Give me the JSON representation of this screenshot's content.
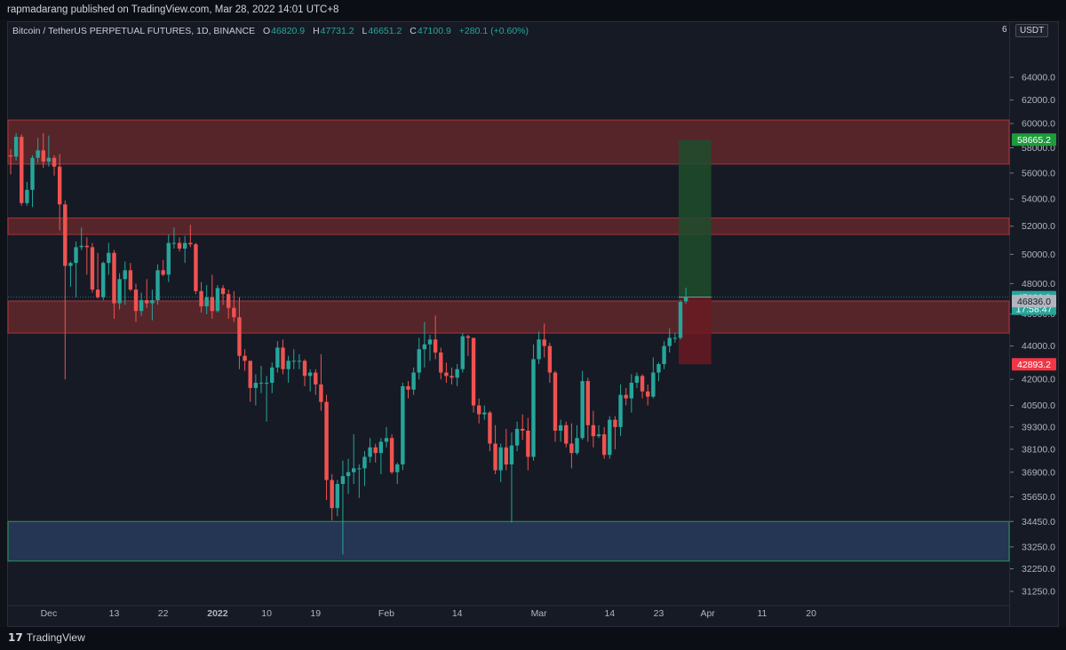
{
  "header": {
    "publisher_text": "rapmadarang published on TradingView.com, Mar 28, 2022 14:01 UTC+8"
  },
  "legend": {
    "symbol": "Bitcoin / TetherUS PERPETUAL FUTURES, 1D, BINANCE",
    "o_label": "O",
    "o_value": "46820.9",
    "h_label": "H",
    "h_value": "47731.2",
    "l_label": "L",
    "l_value": "46651.2",
    "c_label": "C",
    "c_value": "47100.9",
    "change": "+280.1 (+0.60%)"
  },
  "price_axis": {
    "unit_prefix": "6",
    "unit": "USDT",
    "ticks": [
      "64000.0",
      "62000.0",
      "60000.0",
      "58000.0",
      "56000.0",
      "54000.0",
      "52000.0",
      "50000.0",
      "48000.0",
      "46000.0",
      "44000.0",
      "42000.0",
      "40500.0",
      "39300.0",
      "38100.0",
      "36900.0",
      "35650.0",
      "34450.0",
      "33250.0",
      "32250.0",
      "31250.0"
    ],
    "tags": [
      {
        "text": "58665.2",
        "color": "#1e9b3b"
      },
      {
        "text": "47100.9",
        "color": "#26a69a"
      },
      {
        "text": "17:58:47",
        "color": "#26a69a"
      },
      {
        "text": "46836.0",
        "color": "#b2b5be"
      },
      {
        "text": "42893.2",
        "color": "#f23645"
      }
    ]
  },
  "time_axis": {
    "ticks": [
      "Dec",
      "13",
      "22",
      "2022",
      "10",
      "19",
      "Feb",
      "14",
      "Mar",
      "14",
      "23",
      "Apr",
      "11",
      "20"
    ]
  },
  "footer": {
    "brand_mark": "17",
    "brand": "TradingView"
  },
  "colors": {
    "up": "#26a69a",
    "down": "#ef5350",
    "zone": "#7a2b2c",
    "support": "#27395a",
    "target": "#1d4d2b",
    "stop": "#6a1a22"
  },
  "chart_data": {
    "type": "candlestick",
    "title": "Bitcoin / TetherUS PERPETUAL FUTURES, 1D, BINANCE",
    "xlabel": "",
    "ylabel": "",
    "scale": "log",
    "x_range": [
      "2021-11-24",
      "2022-04-20"
    ],
    "y_range": [
      30800,
      65600
    ],
    "grid": false,
    "zones": [
      {
        "kind": "resistance",
        "from": 56700,
        "to": 60300
      },
      {
        "kind": "resistance",
        "from": 51400,
        "to": 52600
      },
      {
        "kind": "resistance",
        "from": 44800,
        "to": 46850
      },
      {
        "kind": "support",
        "from": 32600,
        "to": 34450
      }
    ],
    "long_position": {
      "entry": 47100.9,
      "target": 58665.2,
      "stop": 42893.2,
      "start": "2022-03-27",
      "end": "2022-04-01"
    },
    "last_price": 47100.9,
    "candles": [
      [
        "2021-11-24",
        57400,
        57900,
        55900,
        57300
      ],
      [
        "2021-11-25",
        57300,
        59200,
        57000,
        58900
      ],
      [
        "2021-11-26",
        58900,
        59100,
        53500,
        53700
      ],
      [
        "2021-11-27",
        53700,
        55300,
        53500,
        54700
      ],
      [
        "2021-11-28",
        54700,
        57400,
        53400,
        57200
      ],
      [
        "2021-11-29",
        57200,
        58800,
        56800,
        57800
      ],
      [
        "2021-11-30",
        57800,
        59200,
        56400,
        56900
      ],
      [
        "2021-12-01",
        56900,
        59000,
        56500,
        57200
      ],
      [
        "2021-12-02",
        57200,
        57400,
        55800,
        56500
      ],
      [
        "2021-12-03",
        56500,
        57500,
        51700,
        53600
      ],
      [
        "2021-12-04",
        53600,
        53900,
        42000,
        49200
      ],
      [
        "2021-12-05",
        49200,
        49500,
        47800,
        49400
      ],
      [
        "2021-12-06",
        49400,
        50900,
        47100,
        50500
      ],
      [
        "2021-12-07",
        50500,
        51900,
        50300,
        50600
      ],
      [
        "2021-12-08",
        50600,
        51200,
        48600,
        50500
      ],
      [
        "2021-12-09",
        50500,
        50800,
        47400,
        47600
      ],
      [
        "2021-12-10",
        47600,
        50100,
        47000,
        47100
      ],
      [
        "2021-12-11",
        47100,
        49500,
        46900,
        49400
      ],
      [
        "2021-12-12",
        49400,
        50800,
        48600,
        50100
      ],
      [
        "2021-12-13",
        50100,
        50300,
        45700,
        46700
      ],
      [
        "2021-12-14",
        46700,
        48700,
        46300,
        48300
      ],
      [
        "2021-12-15",
        48300,
        49500,
        46600,
        48900
      ],
      [
        "2021-12-16",
        48900,
        49400,
        47500,
        47600
      ],
      [
        "2021-12-17",
        47600,
        48000,
        45500,
        46200
      ],
      [
        "2021-12-18",
        46200,
        47400,
        45900,
        46900
      ],
      [
        "2021-12-19",
        46900,
        48300,
        46400,
        46700
      ],
      [
        "2021-12-20",
        46700,
        47600,
        45600,
        46900
      ],
      [
        "2021-12-21",
        46900,
        49300,
        46600,
        48900
      ],
      [
        "2021-12-22",
        48900,
        49600,
        48500,
        48600
      ],
      [
        "2021-12-23",
        48600,
        51400,
        48100,
        50800
      ],
      [
        "2021-12-24",
        50800,
        51900,
        50400,
        50800
      ],
      [
        "2021-12-25",
        50800,
        51200,
        50200,
        50400
      ],
      [
        "2021-12-26",
        50400,
        51300,
        49400,
        50800
      ],
      [
        "2021-12-27",
        50800,
        52100,
        50500,
        50700
      ],
      [
        "2021-12-28",
        50700,
        50800,
        47300,
        47500
      ],
      [
        "2021-12-29",
        47500,
        48100,
        46100,
        46500
      ],
      [
        "2021-12-30",
        46500,
        47900,
        46000,
        47100
      ],
      [
        "2021-12-31",
        47100,
        48600,
        45700,
        46200
      ],
      [
        "2022-01-01",
        46200,
        47900,
        46100,
        47700
      ],
      [
        "2022-01-02",
        47700,
        47900,
        46600,
        47300
      ],
      [
        "2022-01-03",
        47300,
        47600,
        45700,
        46400
      ],
      [
        "2022-01-04",
        46400,
        47500,
        45500,
        45800
      ],
      [
        "2022-01-05",
        45800,
        47100,
        42600,
        43400
      ],
      [
        "2022-01-06",
        43400,
        43800,
        42500,
        43100
      ],
      [
        "2022-01-07",
        43100,
        43100,
        40700,
        41500
      ],
      [
        "2022-01-08",
        41500,
        42300,
        40500,
        41800
      ],
      [
        "2022-01-09",
        41800,
        42800,
        41200,
        41800
      ],
      [
        "2022-01-10",
        41800,
        42200,
        39600,
        41800
      ],
      [
        "2022-01-11",
        41800,
        43000,
        41200,
        42700
      ],
      [
        "2022-01-12",
        42700,
        44300,
        42400,
        43900
      ],
      [
        "2022-01-13",
        43900,
        44400,
        42300,
        42600
      ],
      [
        "2022-01-14",
        42600,
        43400,
        41800,
        43100
      ],
      [
        "2022-01-15",
        43100,
        43800,
        42600,
        43100
      ],
      [
        "2022-01-16",
        43100,
        43500,
        42600,
        43100
      ],
      [
        "2022-01-17",
        43100,
        43200,
        41600,
        42200
      ],
      [
        "2022-01-18",
        42200,
        42600,
        41300,
        42400
      ],
      [
        "2022-01-19",
        42400,
        42600,
        41100,
        41700
      ],
      [
        "2022-01-20",
        41700,
        43500,
        40200,
        40700
      ],
      [
        "2022-01-21",
        40700,
        41100,
        35500,
        36500
      ],
      [
        "2022-01-22",
        36500,
        36800,
        34500,
        35100
      ],
      [
        "2022-01-23",
        35100,
        36500,
        34700,
        36300
      ],
      [
        "2022-01-24",
        36300,
        37500,
        32900,
        36700
      ],
      [
        "2022-01-25",
        36700,
        37600,
        35800,
        36900
      ],
      [
        "2022-01-26",
        36900,
        38900,
        36300,
        37100
      ],
      [
        "2022-01-27",
        37100,
        37300,
        35600,
        37100
      ],
      [
        "2022-01-28",
        37100,
        38000,
        36200,
        37700
      ],
      [
        "2022-01-29",
        37700,
        38700,
        37400,
        38200
      ],
      [
        "2022-01-30",
        38200,
        38400,
        37400,
        37900
      ],
      [
        "2022-01-31",
        37900,
        38700,
        36800,
        38500
      ],
      [
        "2022-02-01",
        38500,
        39300,
        38200,
        38700
      ],
      [
        "2022-02-02",
        38700,
        38900,
        36800,
        36900
      ],
      [
        "2022-02-03",
        36900,
        37400,
        36300,
        37300
      ],
      [
        "2022-02-04",
        37300,
        41800,
        37000,
        41600
      ],
      [
        "2022-02-05",
        41600,
        41900,
        40900,
        41400
      ],
      [
        "2022-02-06",
        41400,
        42700,
        41100,
        42400
      ],
      [
        "2022-02-07",
        42400,
        44500,
        42000,
        43800
      ],
      [
        "2022-02-08",
        43800,
        45500,
        42700,
        44100
      ],
      [
        "2022-02-09",
        44100,
        44700,
        43100,
        44400
      ],
      [
        "2022-02-10",
        44400,
        45900,
        43200,
        43600
      ],
      [
        "2022-02-11",
        43600,
        43900,
        42000,
        42400
      ],
      [
        "2022-02-12",
        42400,
        43000,
        41800,
        42200
      ],
      [
        "2022-02-13",
        42200,
        42700,
        41700,
        42100
      ],
      [
        "2022-02-14",
        42100,
        42900,
        41600,
        42600
      ],
      [
        "2022-02-15",
        42600,
        44800,
        42400,
        44600
      ],
      [
        "2022-02-16",
        44600,
        44700,
        43400,
        44500
      ],
      [
        "2022-02-17",
        44500,
        44300,
        40100,
        40500
      ],
      [
        "2022-02-18",
        40500,
        40900,
        39500,
        40000
      ],
      [
        "2022-02-19",
        40000,
        40500,
        39700,
        40100
      ],
      [
        "2022-02-20",
        40100,
        40200,
        38000,
        38400
      ],
      [
        "2022-02-21",
        38400,
        39400,
        36800,
        37000
      ],
      [
        "2022-02-22",
        37000,
        38400,
        36400,
        38200
      ],
      [
        "2022-02-23",
        38200,
        39200,
        37000,
        37300
      ],
      [
        "2022-02-24",
        37300,
        39000,
        34400,
        38300
      ],
      [
        "2022-02-25",
        38300,
        39600,
        38000,
        39200
      ],
      [
        "2022-02-26",
        39200,
        40000,
        38600,
        39100
      ],
      [
        "2022-02-27",
        39100,
        39800,
        37000,
        37700
      ],
      [
        "2022-02-28",
        37700,
        44100,
        37500,
        43200
      ],
      [
        "2022-03-01",
        43200,
        44900,
        42900,
        44400
      ],
      [
        "2022-03-02",
        44400,
        45400,
        43300,
        44000
      ],
      [
        "2022-03-03",
        44000,
        44200,
        41800,
        42400
      ],
      [
        "2022-03-04",
        42400,
        42500,
        38500,
        39100
      ],
      [
        "2022-03-05",
        39100,
        39700,
        38500,
        39400
      ],
      [
        "2022-03-06",
        39400,
        39600,
        38200,
        38400
      ],
      [
        "2022-03-07",
        38400,
        39500,
        37100,
        37900
      ],
      [
        "2022-03-08",
        37900,
        39400,
        37800,
        38700
      ],
      [
        "2022-03-09",
        38700,
        42500,
        38600,
        41900
      ],
      [
        "2022-03-10",
        41900,
        42100,
        38500,
        39400
      ],
      [
        "2022-03-11",
        39400,
        40200,
        38200,
        38800
      ],
      [
        "2022-03-12",
        38800,
        39400,
        38700,
        38900
      ],
      [
        "2022-03-13",
        38900,
        39300,
        37600,
        37800
      ],
      [
        "2022-03-14",
        37800,
        39900,
        37600,
        39700
      ],
      [
        "2022-03-15",
        39700,
        39900,
        38100,
        39300
      ],
      [
        "2022-03-16",
        39300,
        41700,
        38800,
        41100
      ],
      [
        "2022-03-17",
        41100,
        41500,
        40500,
        40900
      ],
      [
        "2022-03-18",
        40900,
        42300,
        40100,
        41800
      ],
      [
        "2022-03-19",
        41800,
        42400,
        41500,
        42200
      ],
      [
        "2022-03-20",
        42200,
        42300,
        40900,
        41300
      ],
      [
        "2022-03-21",
        41300,
        41700,
        40500,
        41000
      ],
      [
        "2022-03-22",
        41000,
        43300,
        40900,
        42400
      ],
      [
        "2022-03-23",
        42400,
        43000,
        41900,
        42900
      ],
      [
        "2022-03-24",
        42900,
        44300,
        42600,
        44000
      ],
      [
        "2022-03-25",
        44000,
        45100,
        43600,
        44500
      ],
      [
        "2022-03-26",
        44500,
        44800,
        44200,
        44500
      ],
      [
        "2022-03-27",
        44500,
        46900,
        44400,
        46800
      ],
      [
        "2022-03-28",
        46820.9,
        47731.2,
        46651.2,
        47100.9
      ]
    ]
  }
}
